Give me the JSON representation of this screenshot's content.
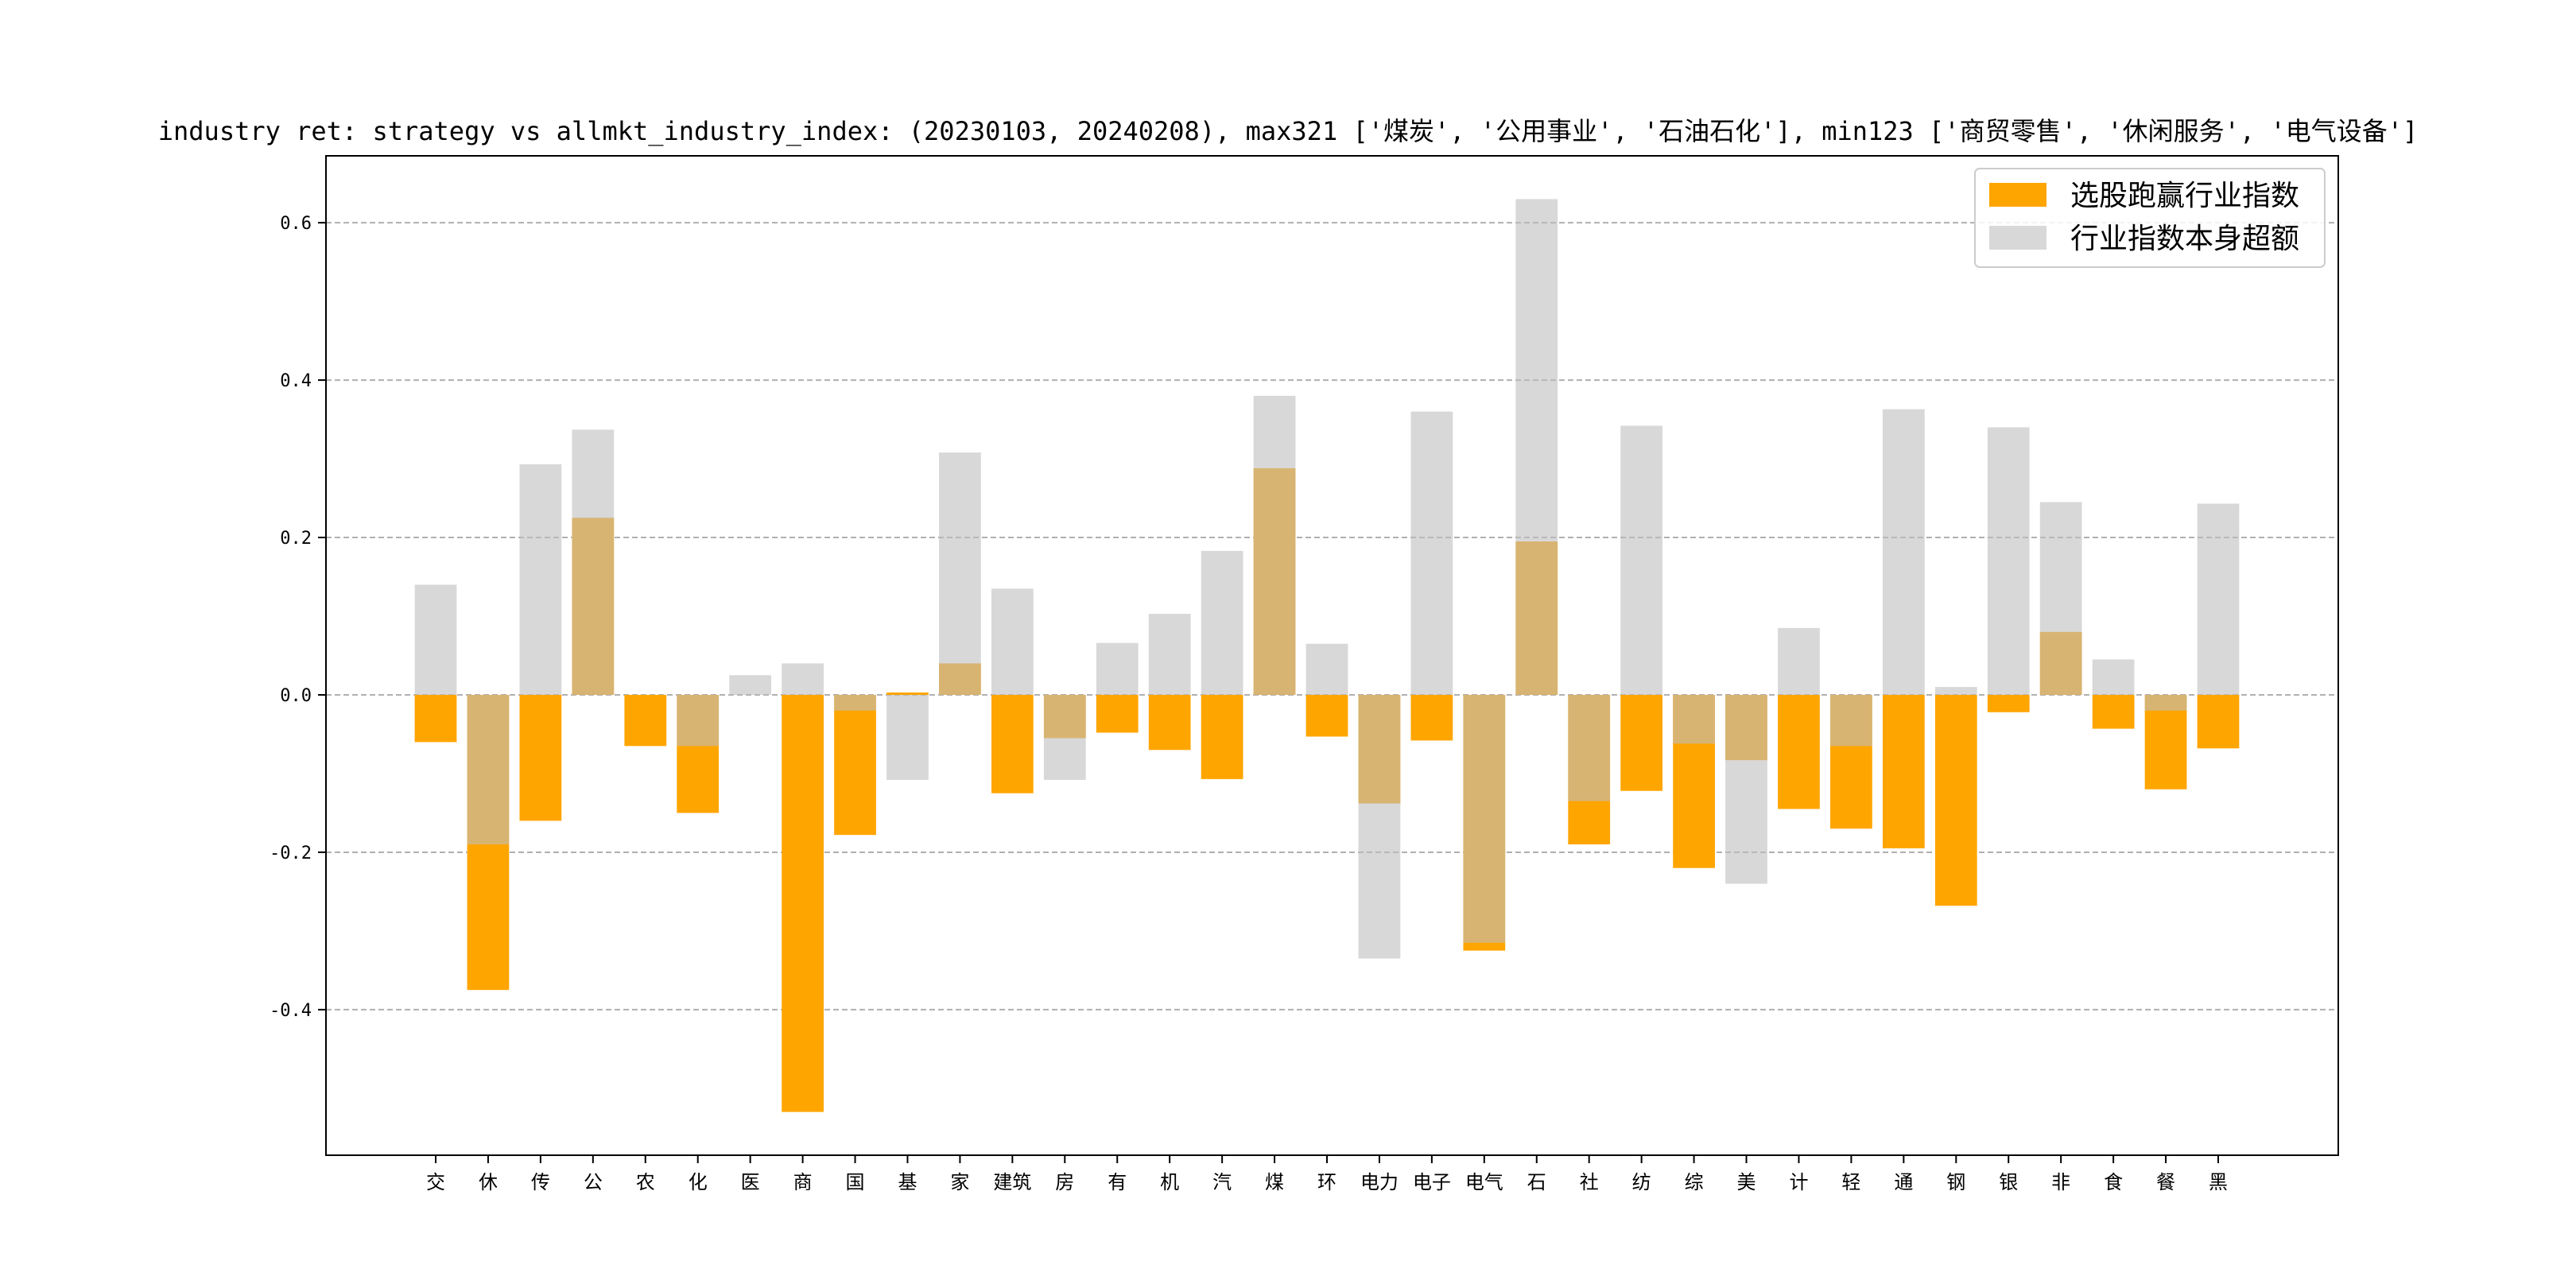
{
  "chart_data": {
    "type": "bar",
    "title": "industry ret: strategy vs allmkt_industry_index: (20230103, 20240208), max321 ['煤炭', '公用事业', '石油石化'], min123 ['商贸零售', '休闲服务', '电气设备']",
    "categories": [
      "交",
      "休",
      "传",
      "公",
      "农",
      "化",
      "医",
      "商",
      "国",
      "基",
      "家",
      "建筑",
      "房",
      "有",
      "机",
      "汽",
      "煤",
      "环",
      "电力",
      "电子",
      "电气",
      "石",
      "社",
      "纺",
      "综",
      "美",
      "计",
      "轻",
      "通",
      "钢",
      "银",
      "非",
      "食",
      "餐",
      "黑"
    ],
    "series": [
      {
        "name": "选股跑赢行业指数",
        "color": "#FFA500",
        "values": [
          -0.06,
          -0.375,
          -0.16,
          0.225,
          -0.065,
          -0.15,
          0.0,
          -0.53,
          -0.178,
          0.003,
          0.04,
          -0.125,
          -0.055,
          -0.048,
          -0.07,
          -0.107,
          0.288,
          -0.053,
          -0.138,
          -0.058,
          -0.325,
          0.195,
          -0.19,
          -0.122,
          -0.22,
          -0.083,
          -0.145,
          -0.17,
          -0.195,
          -0.268,
          -0.022,
          0.08,
          -0.043,
          -0.12,
          -0.068
        ]
      },
      {
        "name": "行业指数本身超额",
        "color": "#BEBEBE",
        "values": [
          0.14,
          -0.19,
          0.293,
          0.337,
          0.0,
          -0.065,
          0.025,
          0.04,
          -0.02,
          -0.108,
          0.308,
          0.135,
          -0.108,
          0.066,
          0.103,
          0.183,
          0.38,
          0.065,
          -0.335,
          0.36,
          -0.315,
          0.63,
          -0.135,
          0.342,
          -0.062,
          -0.24,
          0.085,
          -0.065,
          0.363,
          0.01,
          0.34,
          0.245,
          0.045,
          -0.02,
          0.243
        ]
      }
    ],
    "yticks": [
      "-0.4",
      "-0.2",
      "0.0",
      "0.2",
      "0.4",
      "0.6"
    ],
    "ylim": [
      -0.585,
      0.685
    ],
    "grid": "horizontal dashed",
    "legend": "top-right"
  }
}
